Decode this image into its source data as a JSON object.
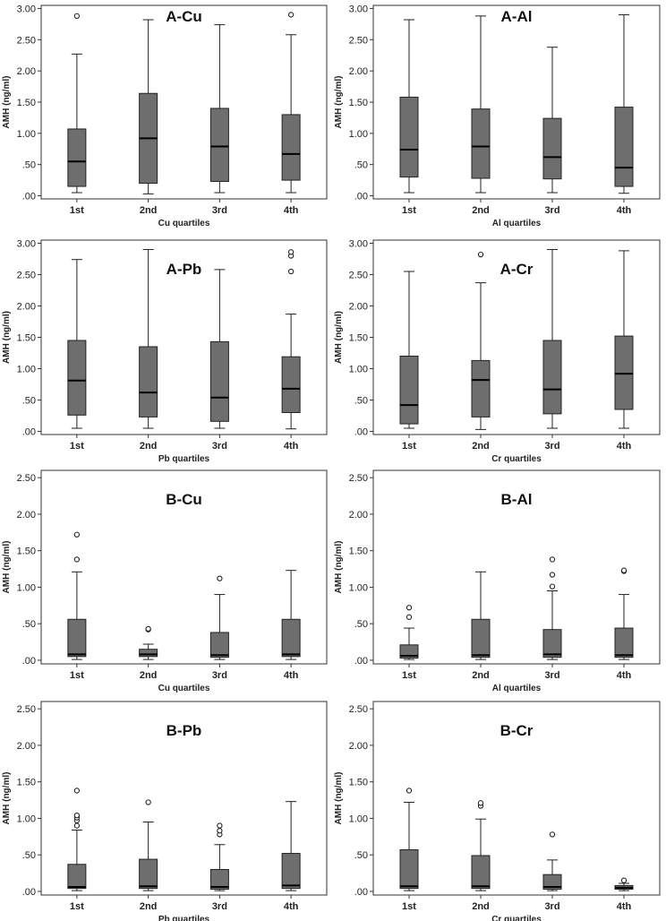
{
  "figure": {
    "colors": {
      "box_fill": "#6e6e6e",
      "stroke": "#222222",
      "frame": "#333333",
      "background": "#ffffff"
    },
    "categories": [
      "1st",
      "2nd",
      "3rd",
      "4th"
    ],
    "ylabel": "AMH (ng/ml)"
  },
  "chart_data": [
    {
      "type": "box",
      "title": "A-Cu",
      "xlabel": "Cu quartiles",
      "ylabel": "AMH (ng/ml)",
      "categories": [
        "1st",
        "2nd",
        "3rd",
        "4th"
      ],
      "yticks": [
        ".00",
        ".50",
        "1.00",
        "1.50",
        "2.00",
        "2.50",
        "3.00"
      ],
      "ylim": [
        -0.05,
        3.05
      ],
      "boxes": [
        {
          "min": 0.05,
          "q1": 0.15,
          "median": 0.55,
          "q3": 1.07,
          "max": 2.27,
          "outliers": [
            2.88
          ]
        },
        {
          "min": 0.03,
          "q1": 0.2,
          "median": 0.92,
          "q3": 1.64,
          "max": 2.82,
          "outliers": []
        },
        {
          "min": 0.05,
          "q1": 0.23,
          "median": 0.79,
          "q3": 1.4,
          "max": 2.74,
          "outliers": []
        },
        {
          "min": 0.05,
          "q1": 0.25,
          "median": 0.67,
          "q3": 1.3,
          "max": 2.58,
          "outliers": [
            2.9
          ]
        }
      ]
    },
    {
      "type": "box",
      "title": "A-Al",
      "xlabel": "Al quartiles",
      "ylabel": "AMH (ng/ml)",
      "categories": [
        "1st",
        "2nd",
        "3rd",
        "4th"
      ],
      "yticks": [
        ".00",
        ".50",
        "1.00",
        "1.50",
        "2.00",
        "2.50",
        "3.00"
      ],
      "ylim": [
        -0.05,
        3.05
      ],
      "boxes": [
        {
          "min": 0.05,
          "q1": 0.3,
          "median": 0.74,
          "q3": 1.58,
          "max": 2.82,
          "outliers": []
        },
        {
          "min": 0.05,
          "q1": 0.28,
          "median": 0.79,
          "q3": 1.39,
          "max": 2.88,
          "outliers": []
        },
        {
          "min": 0.05,
          "q1": 0.27,
          "median": 0.62,
          "q3": 1.24,
          "max": 2.38,
          "outliers": []
        },
        {
          "min": 0.04,
          "q1": 0.15,
          "median": 0.45,
          "q3": 1.42,
          "max": 2.9,
          "outliers": []
        }
      ]
    },
    {
      "type": "box",
      "title": "A-Pb",
      "xlabel": "Pb quartiles",
      "ylabel": "AMH (ng/ml)",
      "categories": [
        "1st",
        "2nd",
        "3rd",
        "4th"
      ],
      "yticks": [
        ".00",
        ".50",
        "1.00",
        "1.50",
        "2.00",
        "2.50",
        "3.00"
      ],
      "ylim": [
        -0.05,
        3.05
      ],
      "boxes": [
        {
          "min": 0.05,
          "q1": 0.26,
          "median": 0.81,
          "q3": 1.45,
          "max": 2.74,
          "outliers": []
        },
        {
          "min": 0.05,
          "q1": 0.23,
          "median": 0.62,
          "q3": 1.35,
          "max": 2.9,
          "outliers": []
        },
        {
          "min": 0.05,
          "q1": 0.16,
          "median": 0.54,
          "q3": 1.43,
          "max": 2.58,
          "outliers": []
        },
        {
          "min": 0.04,
          "q1": 0.3,
          "median": 0.68,
          "q3": 1.19,
          "max": 1.87,
          "outliers": [
            2.55,
            2.8,
            2.86
          ]
        }
      ]
    },
    {
      "type": "box",
      "title": "A-Cr",
      "xlabel": "Cr quartiles",
      "ylabel": "AMH (ng/ml)",
      "categories": [
        "1st",
        "2nd",
        "3rd",
        "4th"
      ],
      "yticks": [
        ".00",
        ".50",
        "1.00",
        "1.50",
        "2.00",
        "2.50",
        "3.00"
      ],
      "ylim": [
        -0.05,
        3.05
      ],
      "boxes": [
        {
          "min": 0.05,
          "q1": 0.12,
          "median": 0.42,
          "q3": 1.2,
          "max": 2.55,
          "outliers": []
        },
        {
          "min": 0.03,
          "q1": 0.23,
          "median": 0.82,
          "q3": 1.13,
          "max": 2.37,
          "outliers": [
            2.82
          ]
        },
        {
          "min": 0.05,
          "q1": 0.28,
          "median": 0.67,
          "q3": 1.45,
          "max": 2.9,
          "outliers": []
        },
        {
          "min": 0.05,
          "q1": 0.35,
          "median": 0.92,
          "q3": 1.52,
          "max": 2.88,
          "outliers": []
        }
      ]
    },
    {
      "type": "box",
      "title": "B-Cu",
      "xlabel": "Cu quartiles",
      "ylabel": "AMH (ng/ml)",
      "categories": [
        "1st",
        "2nd",
        "3rd",
        "4th"
      ],
      "yticks": [
        ".00",
        ".50",
        "1.00",
        "1.50",
        "2.00",
        "2.50"
      ],
      "ylim": [
        -0.05,
        2.6
      ],
      "boxes": [
        {
          "min": 0.01,
          "q1": 0.05,
          "median": 0.08,
          "q3": 0.56,
          "max": 1.21,
          "outliers": [
            1.38,
            1.72
          ]
        },
        {
          "min": 0.01,
          "q1": 0.05,
          "median": 0.08,
          "q3": 0.15,
          "max": 0.22,
          "outliers": [
            0.42,
            0.43
          ]
        },
        {
          "min": 0.01,
          "q1": 0.04,
          "median": 0.07,
          "q3": 0.38,
          "max": 0.9,
          "outliers": [
            1.12
          ]
        },
        {
          "min": 0.01,
          "q1": 0.05,
          "median": 0.08,
          "q3": 0.56,
          "max": 1.23,
          "outliers": []
        }
      ]
    },
    {
      "type": "box",
      "title": "B-Al",
      "xlabel": "Al quartiles",
      "ylabel": "AMH (ng/ml)",
      "categories": [
        "1st",
        "2nd",
        "3rd",
        "4th"
      ],
      "yticks": [
        ".00",
        ".50",
        "1.00",
        "1.50",
        "2.00",
        "2.50"
      ],
      "ylim": [
        -0.05,
        2.6
      ],
      "boxes": [
        {
          "min": 0.01,
          "q1": 0.03,
          "median": 0.06,
          "q3": 0.21,
          "max": 0.44,
          "outliers": [
            0.59,
            0.72
          ]
        },
        {
          "min": 0.01,
          "q1": 0.04,
          "median": 0.07,
          "q3": 0.56,
          "max": 1.21,
          "outliers": []
        },
        {
          "min": 0.01,
          "q1": 0.04,
          "median": 0.08,
          "q3": 0.42,
          "max": 0.95,
          "outliers": [
            1.01,
            1.17,
            1.38
          ]
        },
        {
          "min": 0.01,
          "q1": 0.04,
          "median": 0.07,
          "q3": 0.44,
          "max": 0.9,
          "outliers": [
            1.22,
            1.23
          ]
        }
      ]
    },
    {
      "type": "box",
      "title": "B-Pb",
      "xlabel": "Pb quartiles",
      "ylabel": "AMH (ng/ml)",
      "categories": [
        "1st",
        "2nd",
        "3rd",
        "4th"
      ],
      "yticks": [
        ".00",
        ".50",
        "1.00",
        "1.50",
        "2.00",
        "2.50"
      ],
      "ylim": [
        -0.05,
        2.6
      ],
      "boxes": [
        {
          "min": 0.01,
          "q1": 0.04,
          "median": 0.06,
          "q3": 0.37,
          "max": 0.84,
          "outliers": [
            0.9,
            0.97,
            1.01,
            1.04,
            1.38
          ]
        },
        {
          "min": 0.01,
          "q1": 0.04,
          "median": 0.07,
          "q3": 0.44,
          "max": 0.95,
          "outliers": [
            1.22
          ]
        },
        {
          "min": 0.01,
          "q1": 0.03,
          "median": 0.06,
          "q3": 0.3,
          "max": 0.64,
          "outliers": [
            0.78,
            0.83,
            0.9
          ]
        },
        {
          "min": 0.01,
          "q1": 0.04,
          "median": 0.08,
          "q3": 0.52,
          "max": 1.23,
          "outliers": []
        }
      ]
    },
    {
      "type": "box",
      "title": "B-Cr",
      "xlabel": "Cr quartiles",
      "ylabel": "AMH (ng/ml)",
      "categories": [
        "1st",
        "2nd",
        "3rd",
        "4th"
      ],
      "yticks": [
        ".00",
        ".50",
        "1.00",
        "1.50",
        "2.00",
        "2.50"
      ],
      "ylim": [
        -0.05,
        2.6
      ],
      "boxes": [
        {
          "min": 0.01,
          "q1": 0.04,
          "median": 0.07,
          "q3": 0.57,
          "max": 1.22,
          "outliers": [
            1.38
          ]
        },
        {
          "min": 0.01,
          "q1": 0.04,
          "median": 0.07,
          "q3": 0.49,
          "max": 0.99,
          "outliers": [
            1.17,
            1.21
          ]
        },
        {
          "min": 0.01,
          "q1": 0.03,
          "median": 0.06,
          "q3": 0.23,
          "max": 0.43,
          "outliers": [
            0.78
          ]
        },
        {
          "min": 0.01,
          "q1": 0.03,
          "median": 0.05,
          "q3": 0.08,
          "max": 0.11,
          "outliers": [
            0.15
          ]
        }
      ]
    }
  ]
}
